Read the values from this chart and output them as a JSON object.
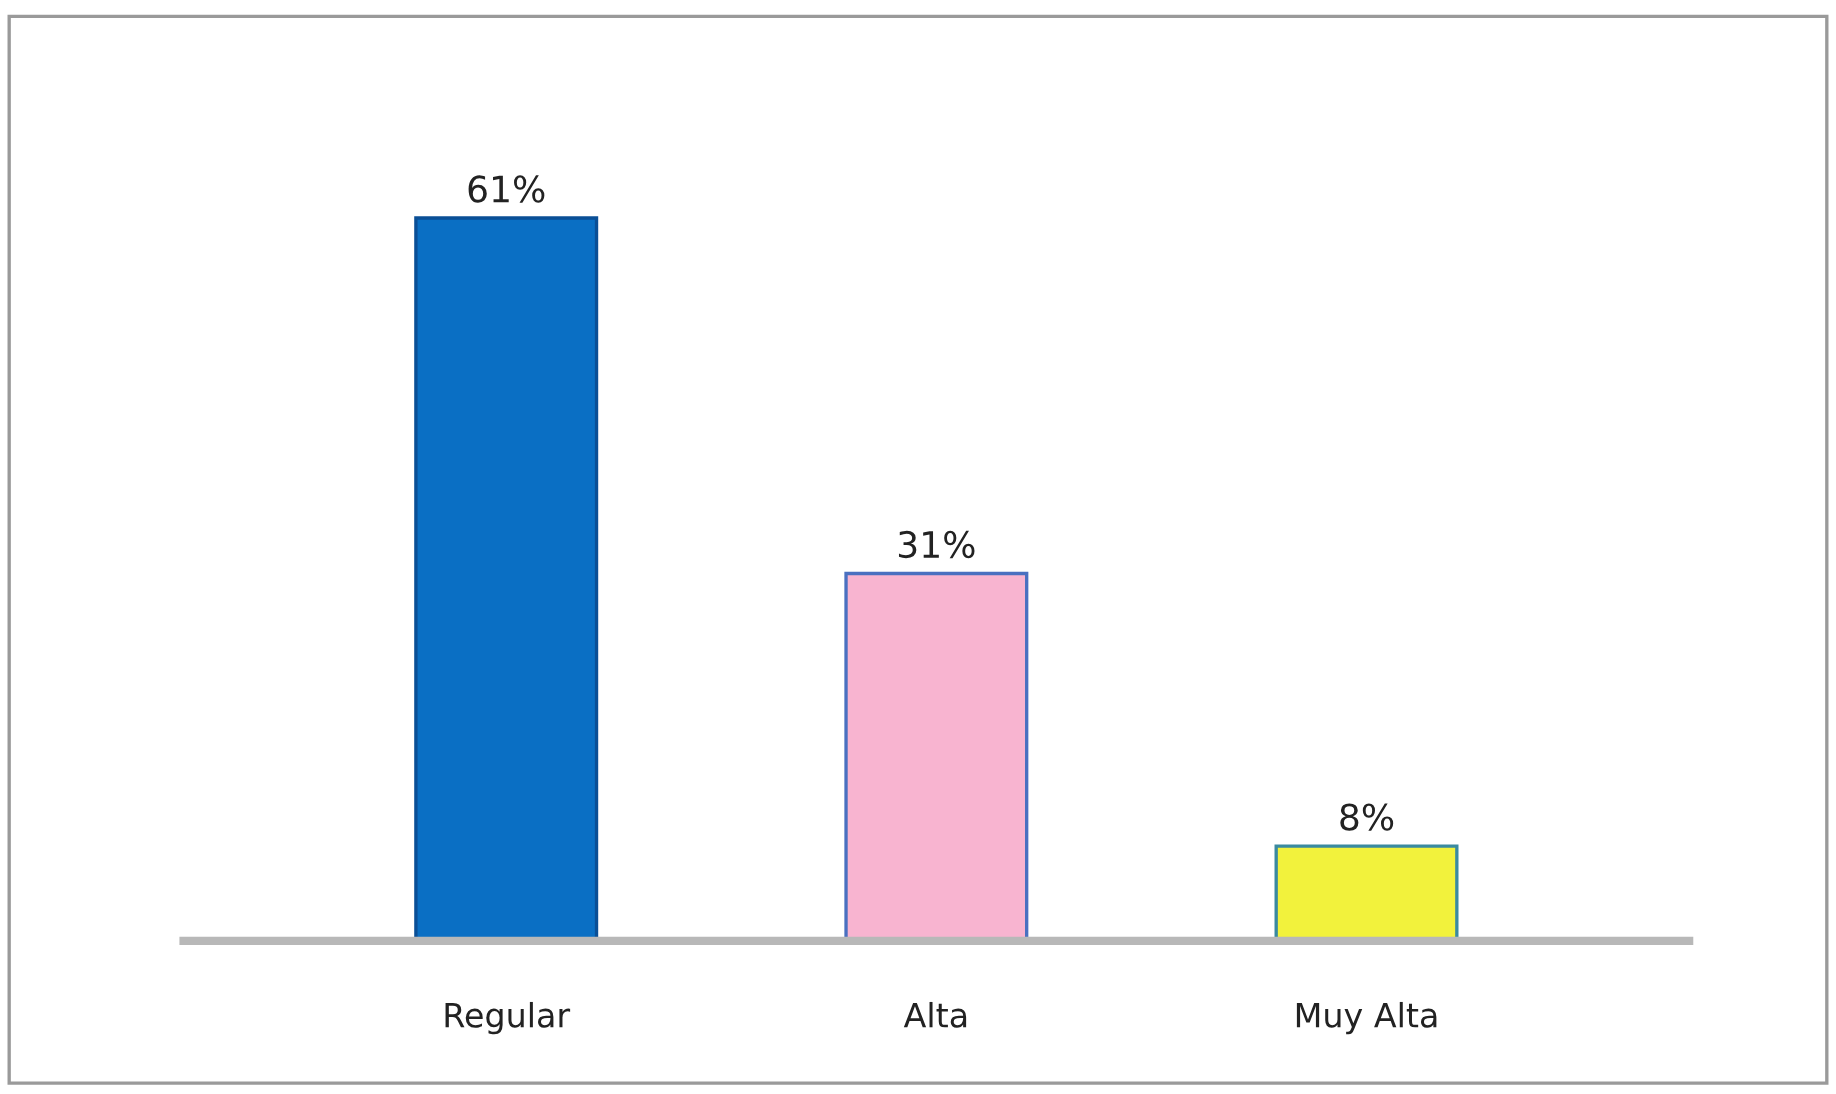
{
  "chart_data": {
    "type": "bar",
    "categories": [
      "Regular",
      "Alta",
      "Muy Alta"
    ],
    "values": [
      61,
      31,
      8
    ],
    "colors": [
      "#0a6fc4",
      "#f8b4d0",
      "#f2f23c"
    ],
    "value_labels": [
      "61%",
      "31%",
      "8%"
    ]
  }
}
